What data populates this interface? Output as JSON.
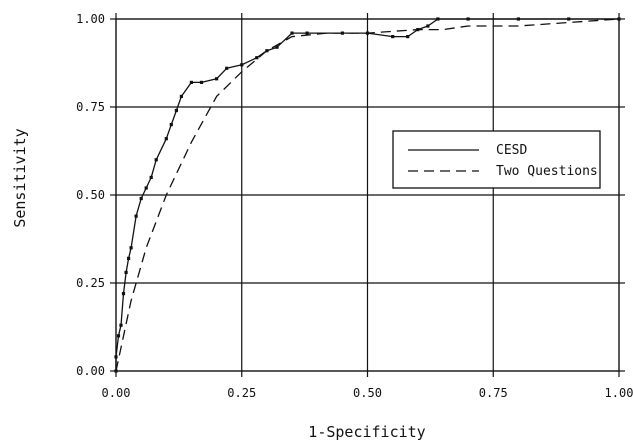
{
  "chart_data": {
    "type": "line",
    "xlabel": "1-Specificity",
    "ylabel": "Sensitivity",
    "xlim": [
      0,
      1
    ],
    "ylim": [
      0,
      1
    ],
    "x_ticks": [
      "0.00",
      "0.25",
      "0.50",
      "0.75",
      "1.00"
    ],
    "y_ticks": [
      "0.00",
      "0.25",
      "0.50",
      "0.75",
      "1.00"
    ],
    "grid": true,
    "legend_position": "center-right",
    "series": [
      {
        "name": "CESD",
        "line_style": "solid",
        "marker": "dot",
        "x": [
          0.0,
          0.0,
          0.005,
          0.01,
          0.015,
          0.02,
          0.025,
          0.03,
          0.04,
          0.05,
          0.06,
          0.07,
          0.08,
          0.1,
          0.11,
          0.12,
          0.13,
          0.15,
          0.17,
          0.2,
          0.22,
          0.25,
          0.28,
          0.3,
          0.32,
          0.35,
          0.38,
          0.45,
          0.5,
          0.55,
          0.58,
          0.6,
          0.62,
          0.64,
          0.7,
          0.8,
          0.9,
          1.0
        ],
        "y": [
          0.0,
          0.04,
          0.1,
          0.13,
          0.22,
          0.28,
          0.32,
          0.35,
          0.44,
          0.49,
          0.52,
          0.55,
          0.6,
          0.66,
          0.7,
          0.74,
          0.78,
          0.82,
          0.82,
          0.83,
          0.86,
          0.87,
          0.89,
          0.91,
          0.92,
          0.96,
          0.96,
          0.96,
          0.96,
          0.95,
          0.95,
          0.97,
          0.98,
          1.0,
          1.0,
          1.0,
          1.0,
          1.0
        ]
      },
      {
        "name": "Two Questions",
        "line_style": "dashed",
        "marker": "none",
        "x": [
          0.0,
          0.03,
          0.06,
          0.1,
          0.15,
          0.2,
          0.25,
          0.3,
          0.35,
          0.42,
          0.5,
          0.6,
          0.65,
          0.7,
          0.8,
          0.9,
          1.0
        ],
        "y": [
          0.0,
          0.2,
          0.35,
          0.5,
          0.65,
          0.78,
          0.85,
          0.91,
          0.95,
          0.96,
          0.96,
          0.97,
          0.97,
          0.98,
          0.98,
          0.99,
          1.0
        ]
      }
    ]
  }
}
